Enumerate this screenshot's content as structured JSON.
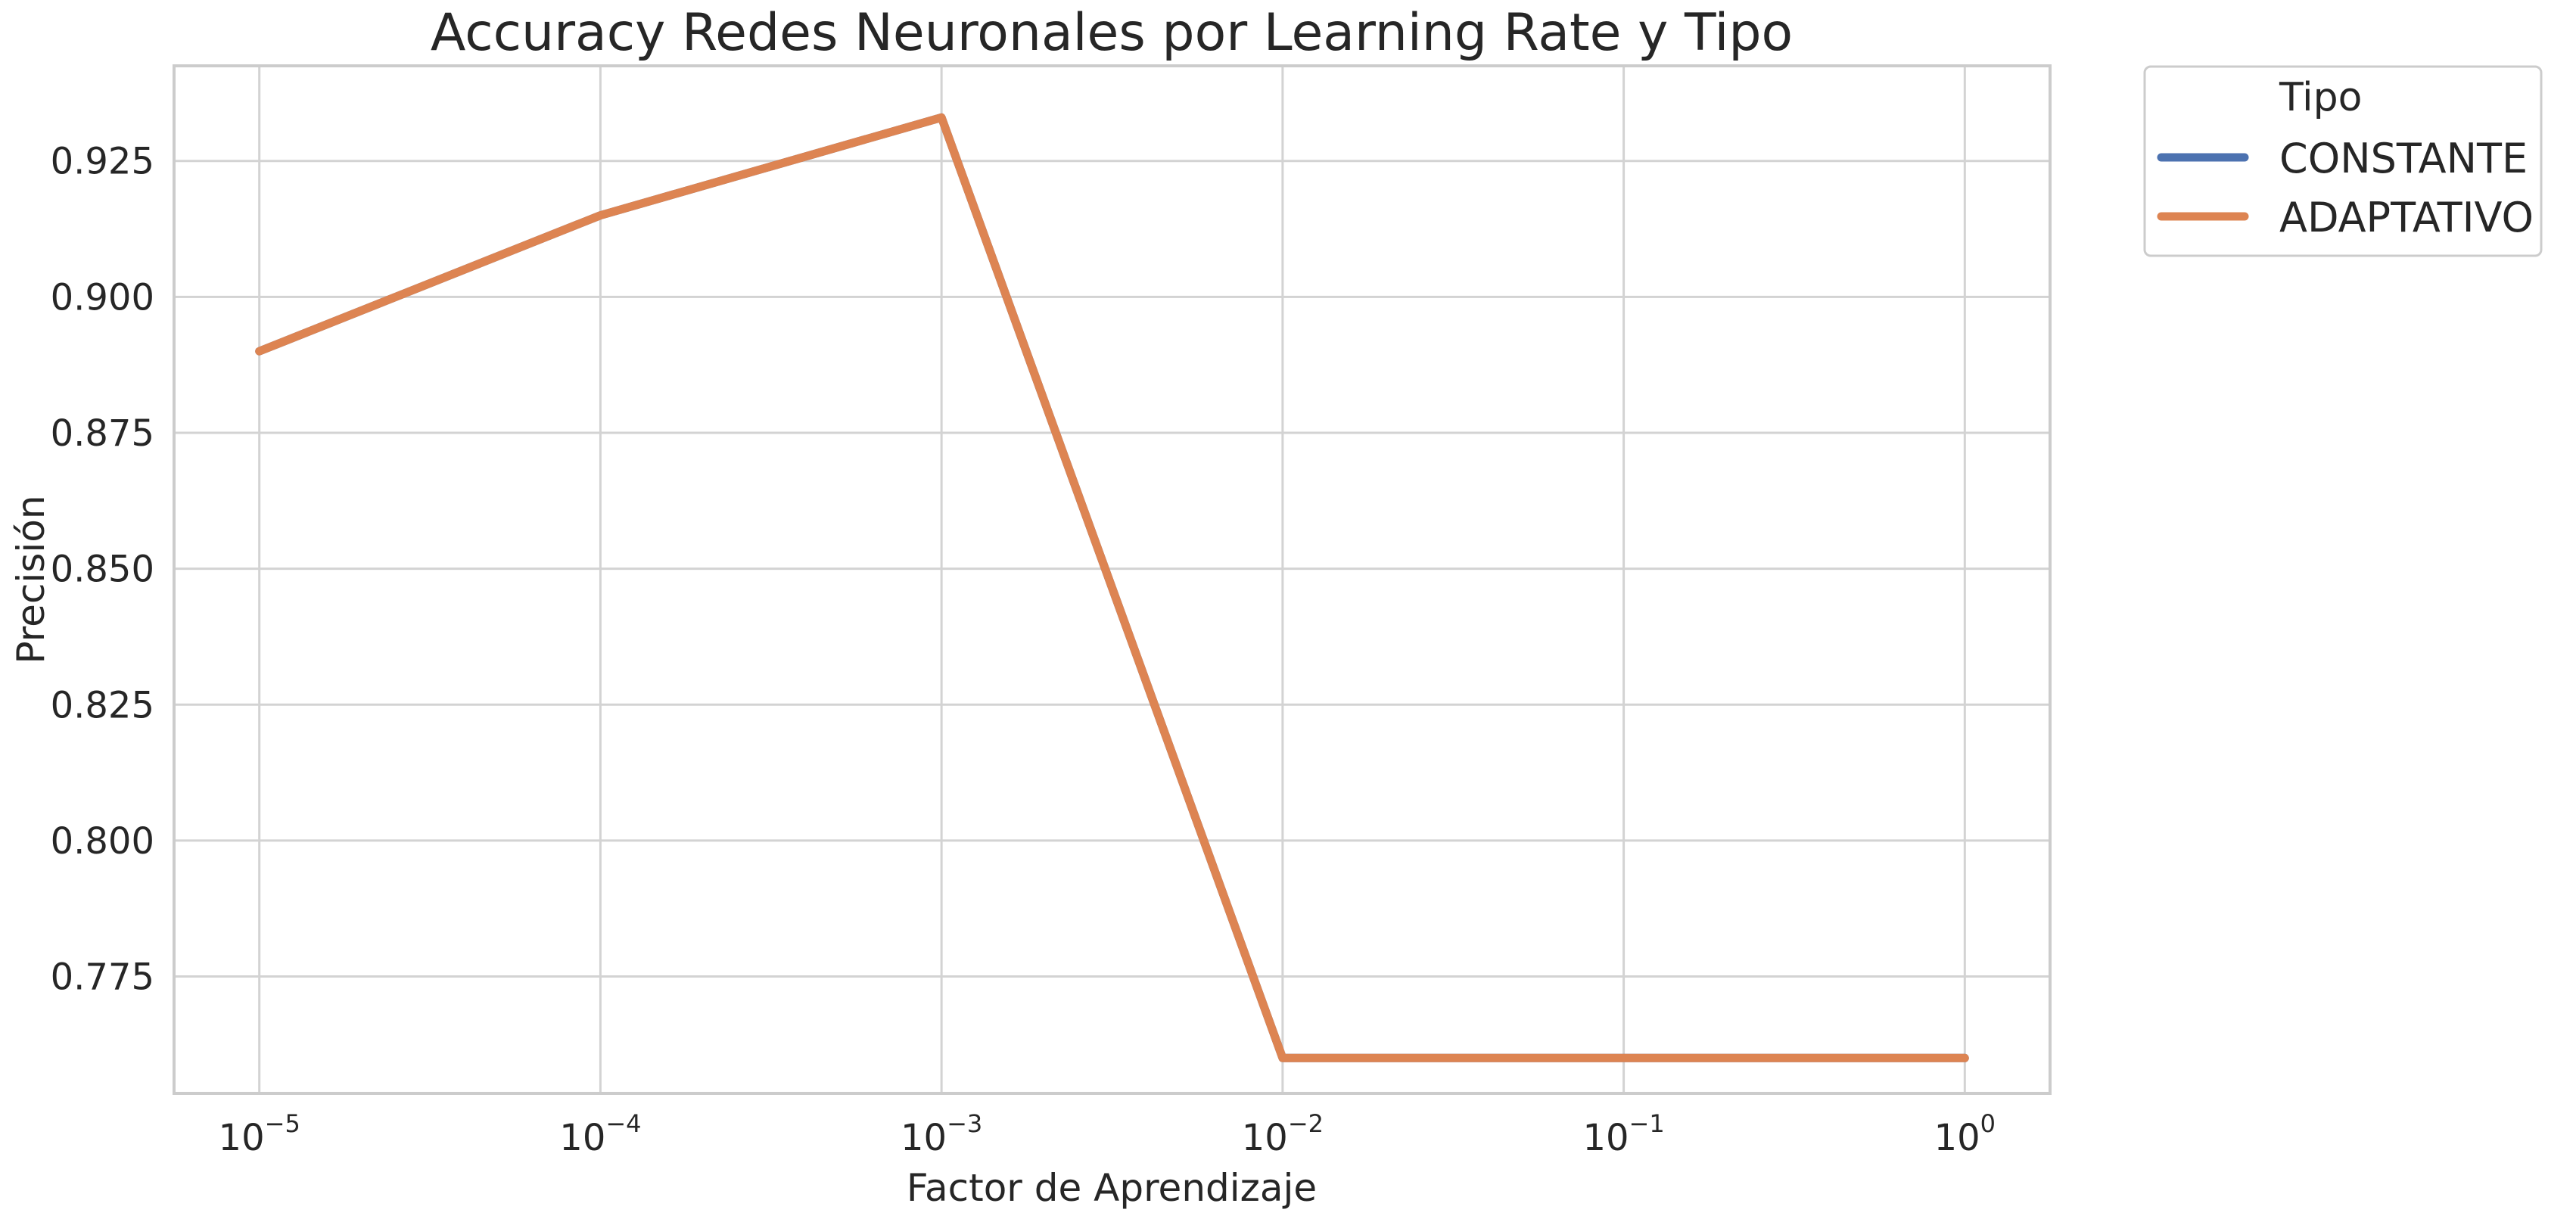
{
  "chart_data": {
    "type": "line",
    "title": "Accuracy Redes Neuronales por Learning Rate y Tipo",
    "xlabel": "Factor de Aprendizaje",
    "ylabel": "Precisión",
    "x_scale": "log",
    "x": [
      1e-05,
      0.0001,
      0.001,
      0.01,
      0.1,
      1
    ],
    "x_tick_labels": [
      {
        "base": "10",
        "exp": "−5"
      },
      {
        "base": "10",
        "exp": "−4"
      },
      {
        "base": "10",
        "exp": "−3"
      },
      {
        "base": "10",
        "exp": "−2"
      },
      {
        "base": "10",
        "exp": "−1"
      },
      {
        "base": "10",
        "exp": "0"
      }
    ],
    "y_ticks": [
      0.775,
      0.8,
      0.825,
      0.85,
      0.875,
      0.9,
      0.925
    ],
    "y_tick_labels": [
      "0.775",
      "0.800",
      "0.825",
      "0.850",
      "0.875",
      "0.900",
      "0.925"
    ],
    "ylim": [
      0.7535,
      0.9425
    ],
    "grid": true,
    "legend": {
      "title": "Tipo",
      "placement": "outside-top-right"
    },
    "series": [
      {
        "name": "CONSTANTE",
        "color": "#4c72b0",
        "values": [
          0.89,
          0.915,
          0.933,
          0.76,
          0.76,
          0.76
        ]
      },
      {
        "name": "ADAPTATIVO",
        "color": "#dd8452",
        "values": [
          0.89,
          0.915,
          0.933,
          0.76,
          0.76,
          0.76
        ]
      }
    ]
  }
}
